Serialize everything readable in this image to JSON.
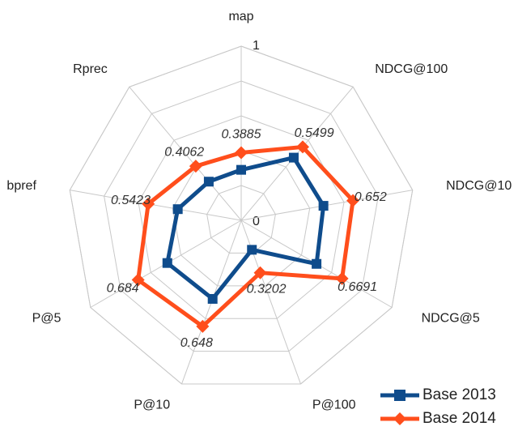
{
  "chart_data": {
    "type": "radar",
    "categories": [
      "map",
      "NDCG@100",
      "NDCG@10",
      "NDCG@5",
      "P@100",
      "P@10",
      "P@5",
      "bpref",
      "Rprec"
    ],
    "ylim": [
      0,
      1
    ],
    "yticks": [
      0,
      1
    ],
    "grid_rings": 5,
    "legend": "bottom-right",
    "series": [
      {
        "name": "Base 2013",
        "color": "#0f4c8c",
        "marker": "square",
        "values": [
          0.29,
          0.47,
          0.48,
          0.5,
          0.18,
          0.48,
          0.49,
          0.37,
          0.29
        ]
      },
      {
        "name": "Base 2014",
        "color": "#ff4e1c",
        "marker": "diamond",
        "values": [
          0.3885,
          0.5499,
          0.652,
          0.6691,
          0.3202,
          0.648,
          0.684,
          0.5423,
          0.4062
        ],
        "value_labels": [
          "0.3885",
          "0.5499",
          "0.652",
          "0.6691",
          "0.3202",
          "0.648",
          "0.684",
          "0.5423",
          "0.4062"
        ]
      }
    ]
  }
}
